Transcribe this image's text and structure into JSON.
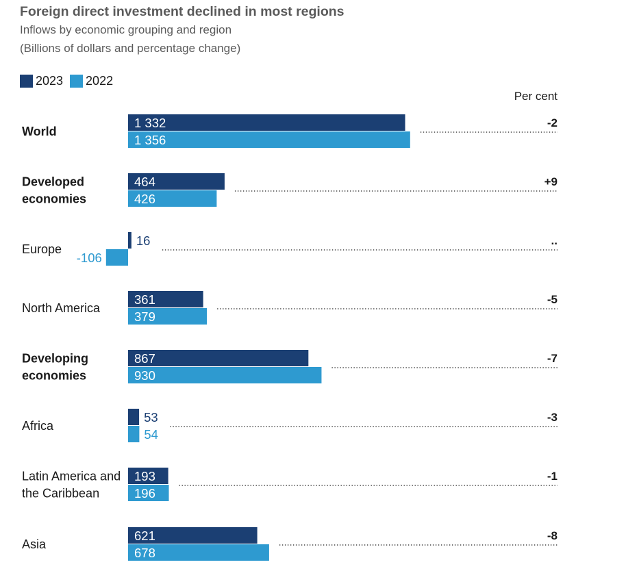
{
  "title": "Foreign direct investment declined in most regions",
  "subtitle_line1": "Inflows by economic grouping and region",
  "subtitle_line2": "(Billions of dollars and percentage change)",
  "legend": [
    {
      "label": "2023",
      "color": "#1b3f73"
    },
    {
      "label": "2022",
      "color": "#2e9ad0"
    }
  ],
  "per_cent_label": "Per cent",
  "chart_data": {
    "type": "bar",
    "orientation": "horizontal",
    "title": "Foreign direct investment declined in most regions",
    "subtitle": "Inflows by economic grouping and region (Billions of dollars and percentage change)",
    "categories": [
      {
        "label": [
          "World"
        ],
        "bold": true
      },
      {
        "label": [
          "Developed",
          "economies"
        ],
        "bold": true
      },
      {
        "label": [
          "Europe"
        ],
        "bold": false
      },
      {
        "label": [
          "North America"
        ],
        "bold": false
      },
      {
        "label": [
          "Developing",
          "economies"
        ],
        "bold": true
      },
      {
        "label": [
          "Africa"
        ],
        "bold": false
      },
      {
        "label": [
          "Latin America and",
          "the Caribbean"
        ],
        "bold": false
      },
      {
        "label": [
          "Asia"
        ],
        "bold": false
      }
    ],
    "series": [
      {
        "name": "2023",
        "color": "#1b3f73",
        "values": [
          1332,
          464,
          16,
          361,
          867,
          53,
          193,
          621
        ],
        "labels": [
          "1 332",
          "464",
          "16",
          "361",
          "867",
          "53",
          "193",
          "621"
        ]
      },
      {
        "name": "2022",
        "color": "#2e9ad0",
        "values": [
          1356,
          426,
          -106,
          379,
          930,
          54,
          196,
          678
        ],
        "labels": [
          "1 356",
          "426",
          "-106",
          "379",
          "930",
          "54",
          "196",
          "678"
        ]
      }
    ],
    "percent_change": [
      "-2",
      "+9",
      "..",
      "-5",
      "-7",
      "-3",
      "-1",
      "-8"
    ],
    "legend_position": "top-left",
    "grid": false
  }
}
